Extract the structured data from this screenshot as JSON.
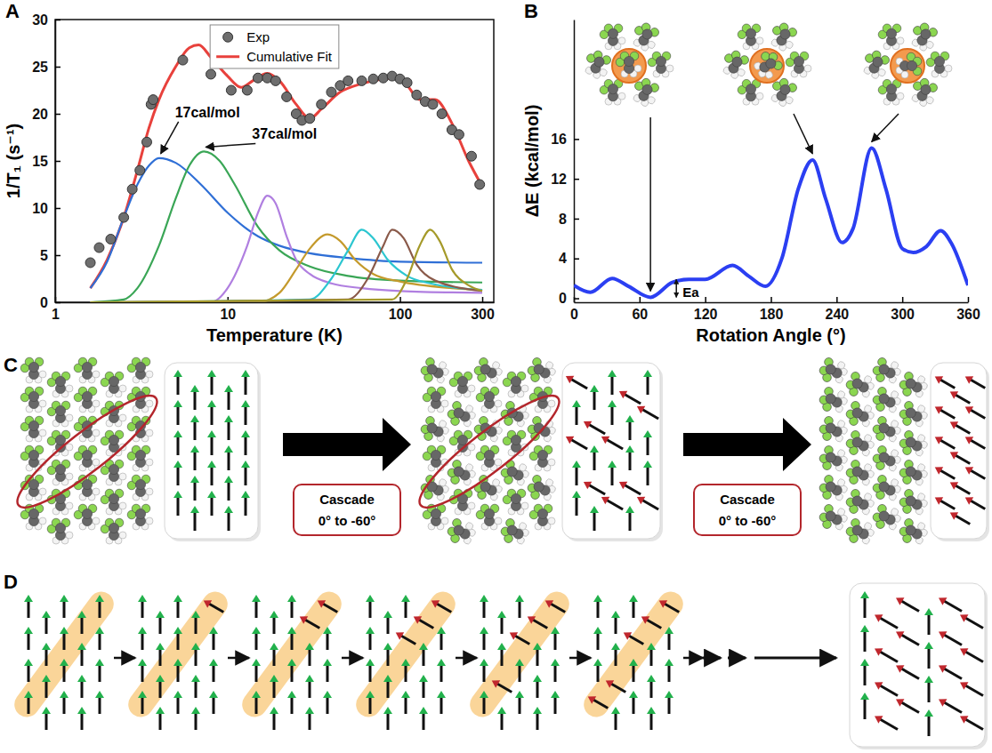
{
  "chart_data": [
    {
      "panel": "A",
      "type": "line",
      "log": "x",
      "xlabel": "Temperature (K)",
      "ylabel": "1/T₁ (s⁻¹)",
      "xlim": [
        1,
        350
      ],
      "xticks": [
        1,
        10,
        100,
        300
      ],
      "ylim": [
        0,
        30
      ],
      "yticks": [
        0,
        5,
        10,
        15,
        20,
        25,
        30
      ],
      "legend": "top",
      "series": [
        {
          "name": "Exp",
          "type": "scatter",
          "marker": "circle",
          "color": "#6e6e6e",
          "x": [
            1.6,
            1.8,
            2.1,
            2.5,
            2.8,
            3.1,
            3.4,
            3.6,
            3.7,
            5.5,
            8,
            10.5,
            13,
            15,
            17,
            19,
            22,
            25,
            27,
            30,
            35,
            40,
            45,
            50,
            60,
            70,
            80,
            90,
            100,
            110,
            125,
            140,
            155,
            175,
            200,
            220,
            260,
            290
          ],
          "values": [
            4.2,
            5.8,
            6.7,
            9,
            12,
            14,
            17,
            21,
            21.5,
            25.7,
            24.2,
            22.5,
            22.5,
            23.8,
            23.8,
            23.5,
            21.8,
            20,
            19.3,
            19.5,
            21,
            22.3,
            23,
            23.5,
            23.5,
            23.7,
            23.8,
            24,
            23.7,
            23.3,
            22,
            21.3,
            21,
            20,
            18.3,
            17.8,
            15.5,
            12.5
          ]
        },
        {
          "name": "Cumulative Fit",
          "color": "#e8413c",
          "x": [
            1.6,
            2,
            2.5,
            3,
            3.5,
            4,
            5,
            6,
            6.8,
            8,
            10,
            12,
            14,
            17,
            20,
            25,
            30,
            35,
            45,
            60,
            80,
            95,
            110,
            130,
            160,
            200,
            250,
            300
          ],
          "values": [
            1.5,
            4.5,
            9,
            14,
            18.5,
            21.5,
            25,
            27,
            27.3,
            26,
            24,
            22.8,
            23.5,
            24.3,
            23.5,
            21,
            19.5,
            20.5,
            22.3,
            23.2,
            23.7,
            23.8,
            23,
            21.5,
            21.5,
            19,
            15,
            12.3
          ]
        },
        {
          "color": "#2f6fd6",
          "annotation": "17cal/mol",
          "x": [
            1.6,
            2,
            2.5,
            3,
            3.5,
            4,
            5,
            7,
            10,
            15,
            20,
            30,
            50,
            100,
            300
          ],
          "values": [
            1.5,
            4.3,
            9,
            12.5,
            14.5,
            15.3,
            14.8,
            12.5,
            9.5,
            7,
            6,
            5.2,
            4.7,
            4.3,
            4.2
          ]
        },
        {
          "color": "#3aa656",
          "annotation": "37cal/mol",
          "x": [
            1.6,
            2.5,
            3,
            4,
            5,
            6,
            7.3,
            9,
            11,
            15,
            20,
            30,
            50,
            100,
            300
          ],
          "values": [
            0,
            0.3,
            1.5,
            6,
            11,
            14.5,
            16,
            15,
            12.5,
            8,
            5.5,
            3.8,
            2.8,
            2.3,
            2.1
          ]
        },
        {
          "color": "#b07fe0",
          "x": [
            1.6,
            8,
            10,
            13,
            15,
            17,
            19,
            22,
            25,
            30,
            40,
            60,
            100,
            300
          ],
          "values": [
            0,
            0,
            1.5,
            6,
            9.5,
            11.3,
            10.5,
            7,
            4.5,
            3,
            2,
            1.5,
            1.2,
            1
          ]
        },
        {
          "color": "#c49a2c",
          "x": [
            1.6,
            15,
            20,
            25,
            30,
            38,
            45,
            55,
            70,
            100,
            200,
            300
          ],
          "values": [
            0,
            0,
            1,
            3.5,
            5.7,
            7.2,
            6.5,
            4.5,
            3,
            2.2,
            1.5,
            1.3
          ]
        },
        {
          "color": "#2cc6d0",
          "x": [
            1.6,
            30,
            40,
            50,
            60,
            70,
            85,
            110,
            150,
            300
          ],
          "values": [
            0,
            0.3,
            2.5,
            5.5,
            7.7,
            6.8,
            4.5,
            2.8,
            2,
            1.3
          ]
        },
        {
          "color": "#8a5a4a",
          "x": [
            1.6,
            50,
            65,
            80,
            90,
            105,
            125,
            160,
            300
          ],
          "values": [
            0,
            0.3,
            2.5,
            6,
            7.7,
            6.8,
            4,
            2.3,
            1.2
          ]
        },
        {
          "color": "#a59a2a",
          "x": [
            1.6,
            90,
            110,
            130,
            150,
            170,
            200,
            250,
            300
          ],
          "values": [
            0,
            0.3,
            2.5,
            6,
            7.7,
            6.5,
            3.5,
            1.8,
            1.2
          ]
        }
      ]
    },
    {
      "panel": "B",
      "type": "line",
      "xlabel": "Rotation Angle (°)",
      "ylabel": "ΔE (kcal/mol)",
      "xlim": [
        0,
        360
      ],
      "xticks": [
        0,
        60,
        120,
        180,
        240,
        300,
        360
      ],
      "ylim": [
        -0.4,
        28
      ],
      "yticks": [
        0,
        4,
        8,
        12,
        16
      ],
      "annotation": "Ea",
      "series": [
        {
          "color": "#2b3ff2",
          "x": [
            0,
            15,
            35,
            50,
            70,
            90,
            105,
            120,
            145,
            160,
            175,
            190,
            205,
            218,
            230,
            245,
            255,
            272,
            285,
            300,
            310,
            322,
            335,
            345,
            360
          ],
          "values": [
            1.3,
            0.6,
            2.0,
            1.2,
            0.1,
            1.6,
            1.9,
            1.9,
            3.3,
            2.2,
            1.2,
            4,
            11,
            13.9,
            10,
            5.6,
            7,
            15.1,
            11,
            5,
            4.6,
            5.2,
            6.8,
            5.5,
            1.3
          ]
        }
      ]
    }
  ],
  "diagram": {
    "panels": [
      {
        "letter": "C",
        "arrow_labels": [
          [
            "Cascade",
            "0° to -60°"
          ],
          [
            "Cascade",
            "0° to -60°"
          ]
        ]
      },
      {
        "letter": "D"
      }
    ]
  }
}
